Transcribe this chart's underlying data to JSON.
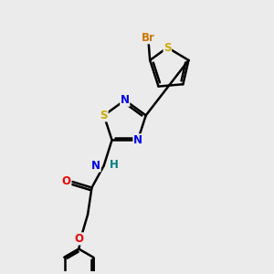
{
  "bg_color": "#ebebeb",
  "bond_color": "#000000",
  "bond_width": 1.8,
  "atom_colors": {
    "S_th": "#ccaa00",
    "S_td": "#ccaa00",
    "N": "#0000ee",
    "O": "#ee0000",
    "Br": "#cc7700",
    "H": "#008080"
  },
  "font_size": 8.5
}
